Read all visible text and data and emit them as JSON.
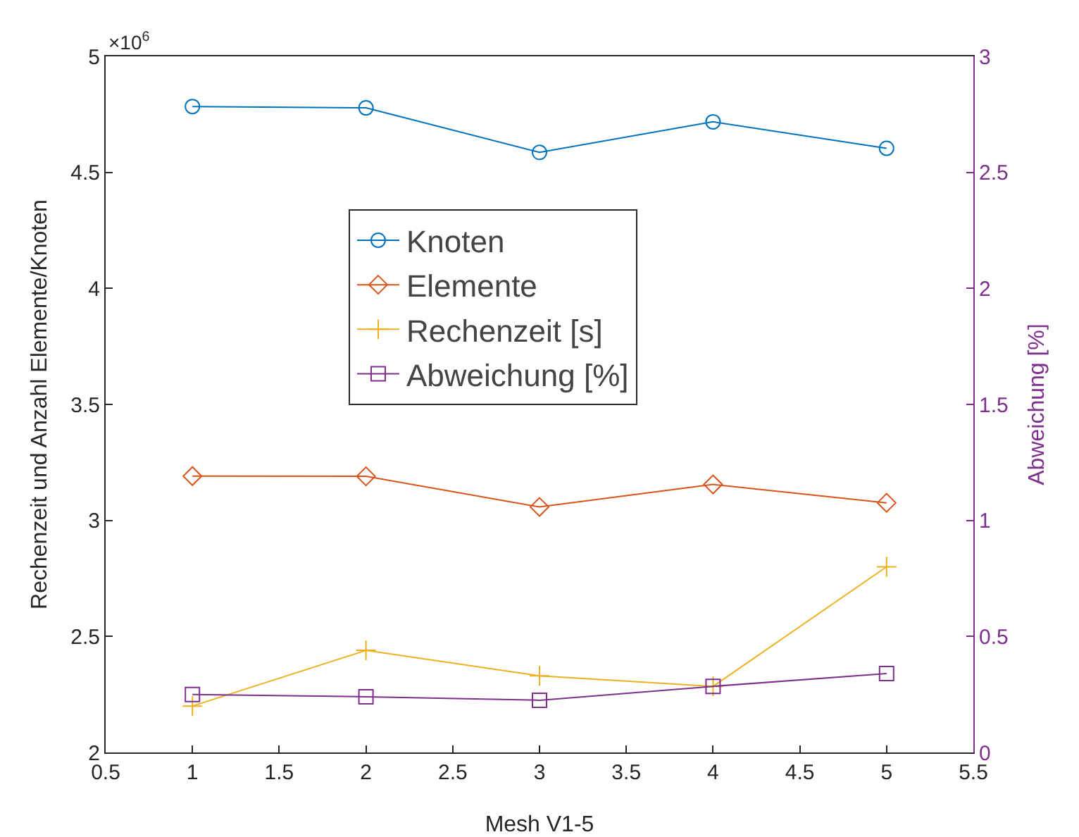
{
  "chart_data": {
    "type": "line",
    "xlabel": "Mesh V1-5",
    "ylabel": "Rechenzeit und Anzahl Elemente/Knoten",
    "y2label": "Abweichung [%]",
    "x": [
      1,
      2,
      3,
      4,
      5
    ],
    "xlim": [
      0.5,
      5.5
    ],
    "xticks": [
      0.5,
      1,
      1.5,
      2,
      2.5,
      3,
      3.5,
      4,
      4.5,
      5,
      5.5
    ],
    "ylim": [
      2,
      5
    ],
    "yticks": [
      2,
      2.5,
      3,
      3.5,
      4,
      4.5,
      5
    ],
    "y2lim": [
      0,
      3
    ],
    "y2ticks": [
      0,
      0.5,
      1,
      1.5,
      2,
      2.5,
      3
    ],
    "annotations": [
      "×10$^{6}$"
    ],
    "legend": "center",
    "series": [
      {
        "name": "Knoten",
        "color": "#0072bd",
        "marker": "circle",
        "values": [
          4.784,
          4.778,
          4.586,
          4.718,
          4.604
        ]
      },
      {
        "name": "Elemente",
        "color": "#d95319",
        "marker": "diamond",
        "values": [
          3.191,
          3.19,
          3.058,
          3.155,
          3.076
        ]
      },
      {
        "name": "Rechenzeit [s]",
        "color": "#edb120",
        "marker": "cross",
        "values": [
          2.2,
          2.44,
          2.33,
          2.285,
          2.8
        ]
      },
      {
        "name": "Abweichung [%]",
        "color": "#7e2f8e",
        "marker": "square",
        "axis": "y2",
        "values": [
          0.25,
          0.24,
          0.225,
          0.285,
          0.34
        ]
      }
    ]
  }
}
